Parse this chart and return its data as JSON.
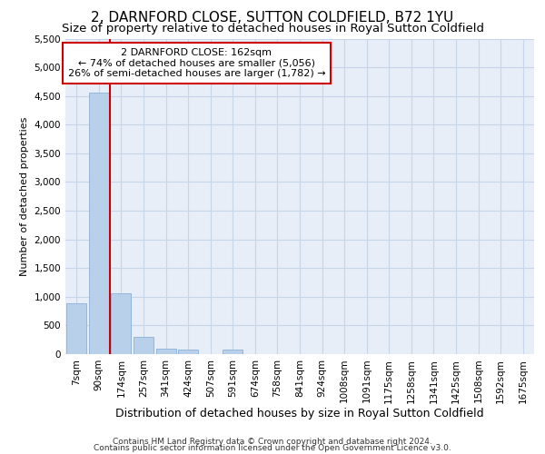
{
  "title": "2, DARNFORD CLOSE, SUTTON COLDFIELD, B72 1YU",
  "subtitle": "Size of property relative to detached houses in Royal Sutton Coldfield",
  "xlabel": "Distribution of detached houses by size in Royal Sutton Coldfield",
  "ylabel": "Number of detached properties",
  "footnote1": "Contains HM Land Registry data © Crown copyright and database right 2024.",
  "footnote2": "Contains public sector information licensed under the Open Government Licence v3.0.",
  "categories": [
    "7sqm",
    "90sqm",
    "174sqm",
    "257sqm",
    "341sqm",
    "424sqm",
    "507sqm",
    "591sqm",
    "674sqm",
    "758sqm",
    "841sqm",
    "924sqm",
    "1008sqm",
    "1091sqm",
    "1175sqm",
    "1258sqm",
    "1341sqm",
    "1425sqm",
    "1508sqm",
    "1592sqm",
    "1675sqm"
  ],
  "values": [
    880,
    4560,
    1060,
    300,
    100,
    75,
    0,
    80,
    0,
    0,
    0,
    0,
    0,
    0,
    0,
    0,
    0,
    0,
    0,
    0,
    0
  ],
  "bar_color": "#b8d0ea",
  "bar_edge_color": "#8ab0d8",
  "vline_color": "#cc0000",
  "annotation_line1": "2 DARNFORD CLOSE: 162sqm",
  "annotation_line2": "← 74% of detached houses are smaller (5,056)",
  "annotation_line3": "26% of semi-detached houses are larger (1,782) →",
  "annotation_box_color": "white",
  "annotation_box_edge_color": "#cc0000",
  "ylim": [
    0,
    5500
  ],
  "yticks": [
    0,
    500,
    1000,
    1500,
    2000,
    2500,
    3000,
    3500,
    4000,
    4500,
    5000,
    5500
  ],
  "grid_color": "#c8d4e8",
  "bg_color": "#e8eef8",
  "title_fontsize": 11,
  "subtitle_fontsize": 9.5,
  "xlabel_fontsize": 9,
  "ylabel_fontsize": 8,
  "tick_fontsize": 7.5,
  "annot_fontsize": 8,
  "footnote_fontsize": 6.5
}
